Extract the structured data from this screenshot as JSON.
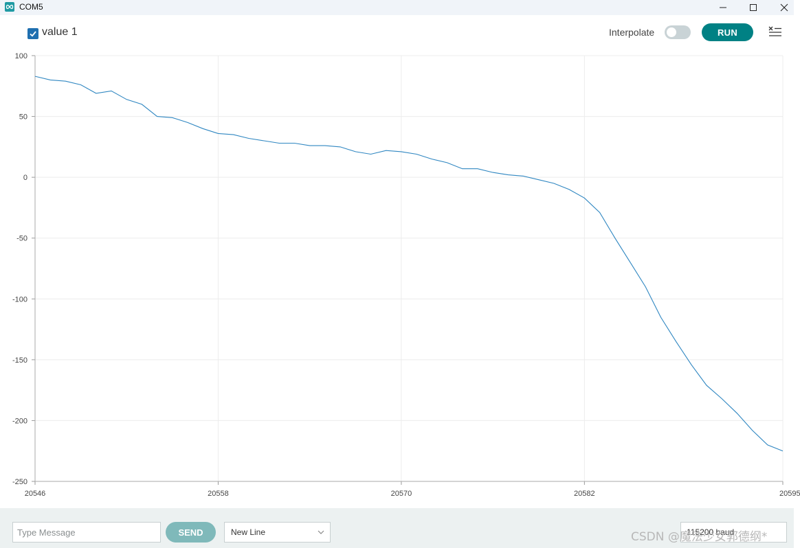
{
  "window": {
    "title": "COM5",
    "icon": "infinity-icon",
    "controls": [
      "minimize-icon",
      "maximize-icon",
      "close-icon"
    ]
  },
  "toolbar": {
    "series_checked": true,
    "series_label": "value 1",
    "interpolate_label": "Interpolate",
    "interpolate_on": false,
    "run_label": "RUN",
    "clear_icon": "clear-list-icon"
  },
  "colors": {
    "accent": "#008184",
    "series_line": "#2e86c1",
    "checkbox": "#1f6fb0",
    "send_button": "#7fb9ba",
    "bottom_bar": "#ecf1f1"
  },
  "chart_data": {
    "type": "line",
    "title": "",
    "xlabel": "",
    "ylabel": "",
    "xlim": [
      20546,
      20595
    ],
    "ylim": [
      -250,
      100
    ],
    "x_ticks": [
      "20546",
      "20558",
      "20570",
      "20582",
      "20595"
    ],
    "y_ticks": [
      "100",
      "50",
      "0",
      "-50",
      "-100",
      "-150",
      "-200",
      "-250"
    ],
    "grid": true,
    "legend": "top-left",
    "series": [
      {
        "name": "value 1",
        "x": [
          20546,
          20547,
          20548,
          20549,
          20550,
          20551,
          20552,
          20553,
          20554,
          20555,
          20556,
          20557,
          20558,
          20559,
          20560,
          20561,
          20562,
          20563,
          20564,
          20565,
          20566,
          20567,
          20568,
          20569,
          20570,
          20571,
          20572,
          20573,
          20574,
          20575,
          20576,
          20577,
          20578,
          20579,
          20580,
          20581,
          20582,
          20583,
          20584,
          20585,
          20586,
          20587,
          20588,
          20589,
          20590,
          20591,
          20592,
          20593,
          20594,
          20595
        ],
        "y": [
          83,
          80,
          79,
          76,
          69,
          71,
          64,
          60,
          50,
          49,
          45,
          40,
          36,
          35,
          32,
          30,
          28,
          28,
          26,
          26,
          25,
          21,
          19,
          22,
          21,
          19,
          15,
          12,
          7,
          7,
          4,
          2,
          1,
          -2,
          -5,
          -10,
          -17,
          -29,
          -50,
          -70,
          -90,
          -115,
          -135,
          -154,
          -171,
          -182,
          -194,
          -208,
          -220,
          -225
        ]
      }
    ]
  },
  "bottom": {
    "message_placeholder": "Type Message",
    "send_label": "SEND",
    "line_ending": "New Line",
    "baud_rate": "115200 baud",
    "watermark": "CSDN @魔法少女郭德纲*"
  }
}
